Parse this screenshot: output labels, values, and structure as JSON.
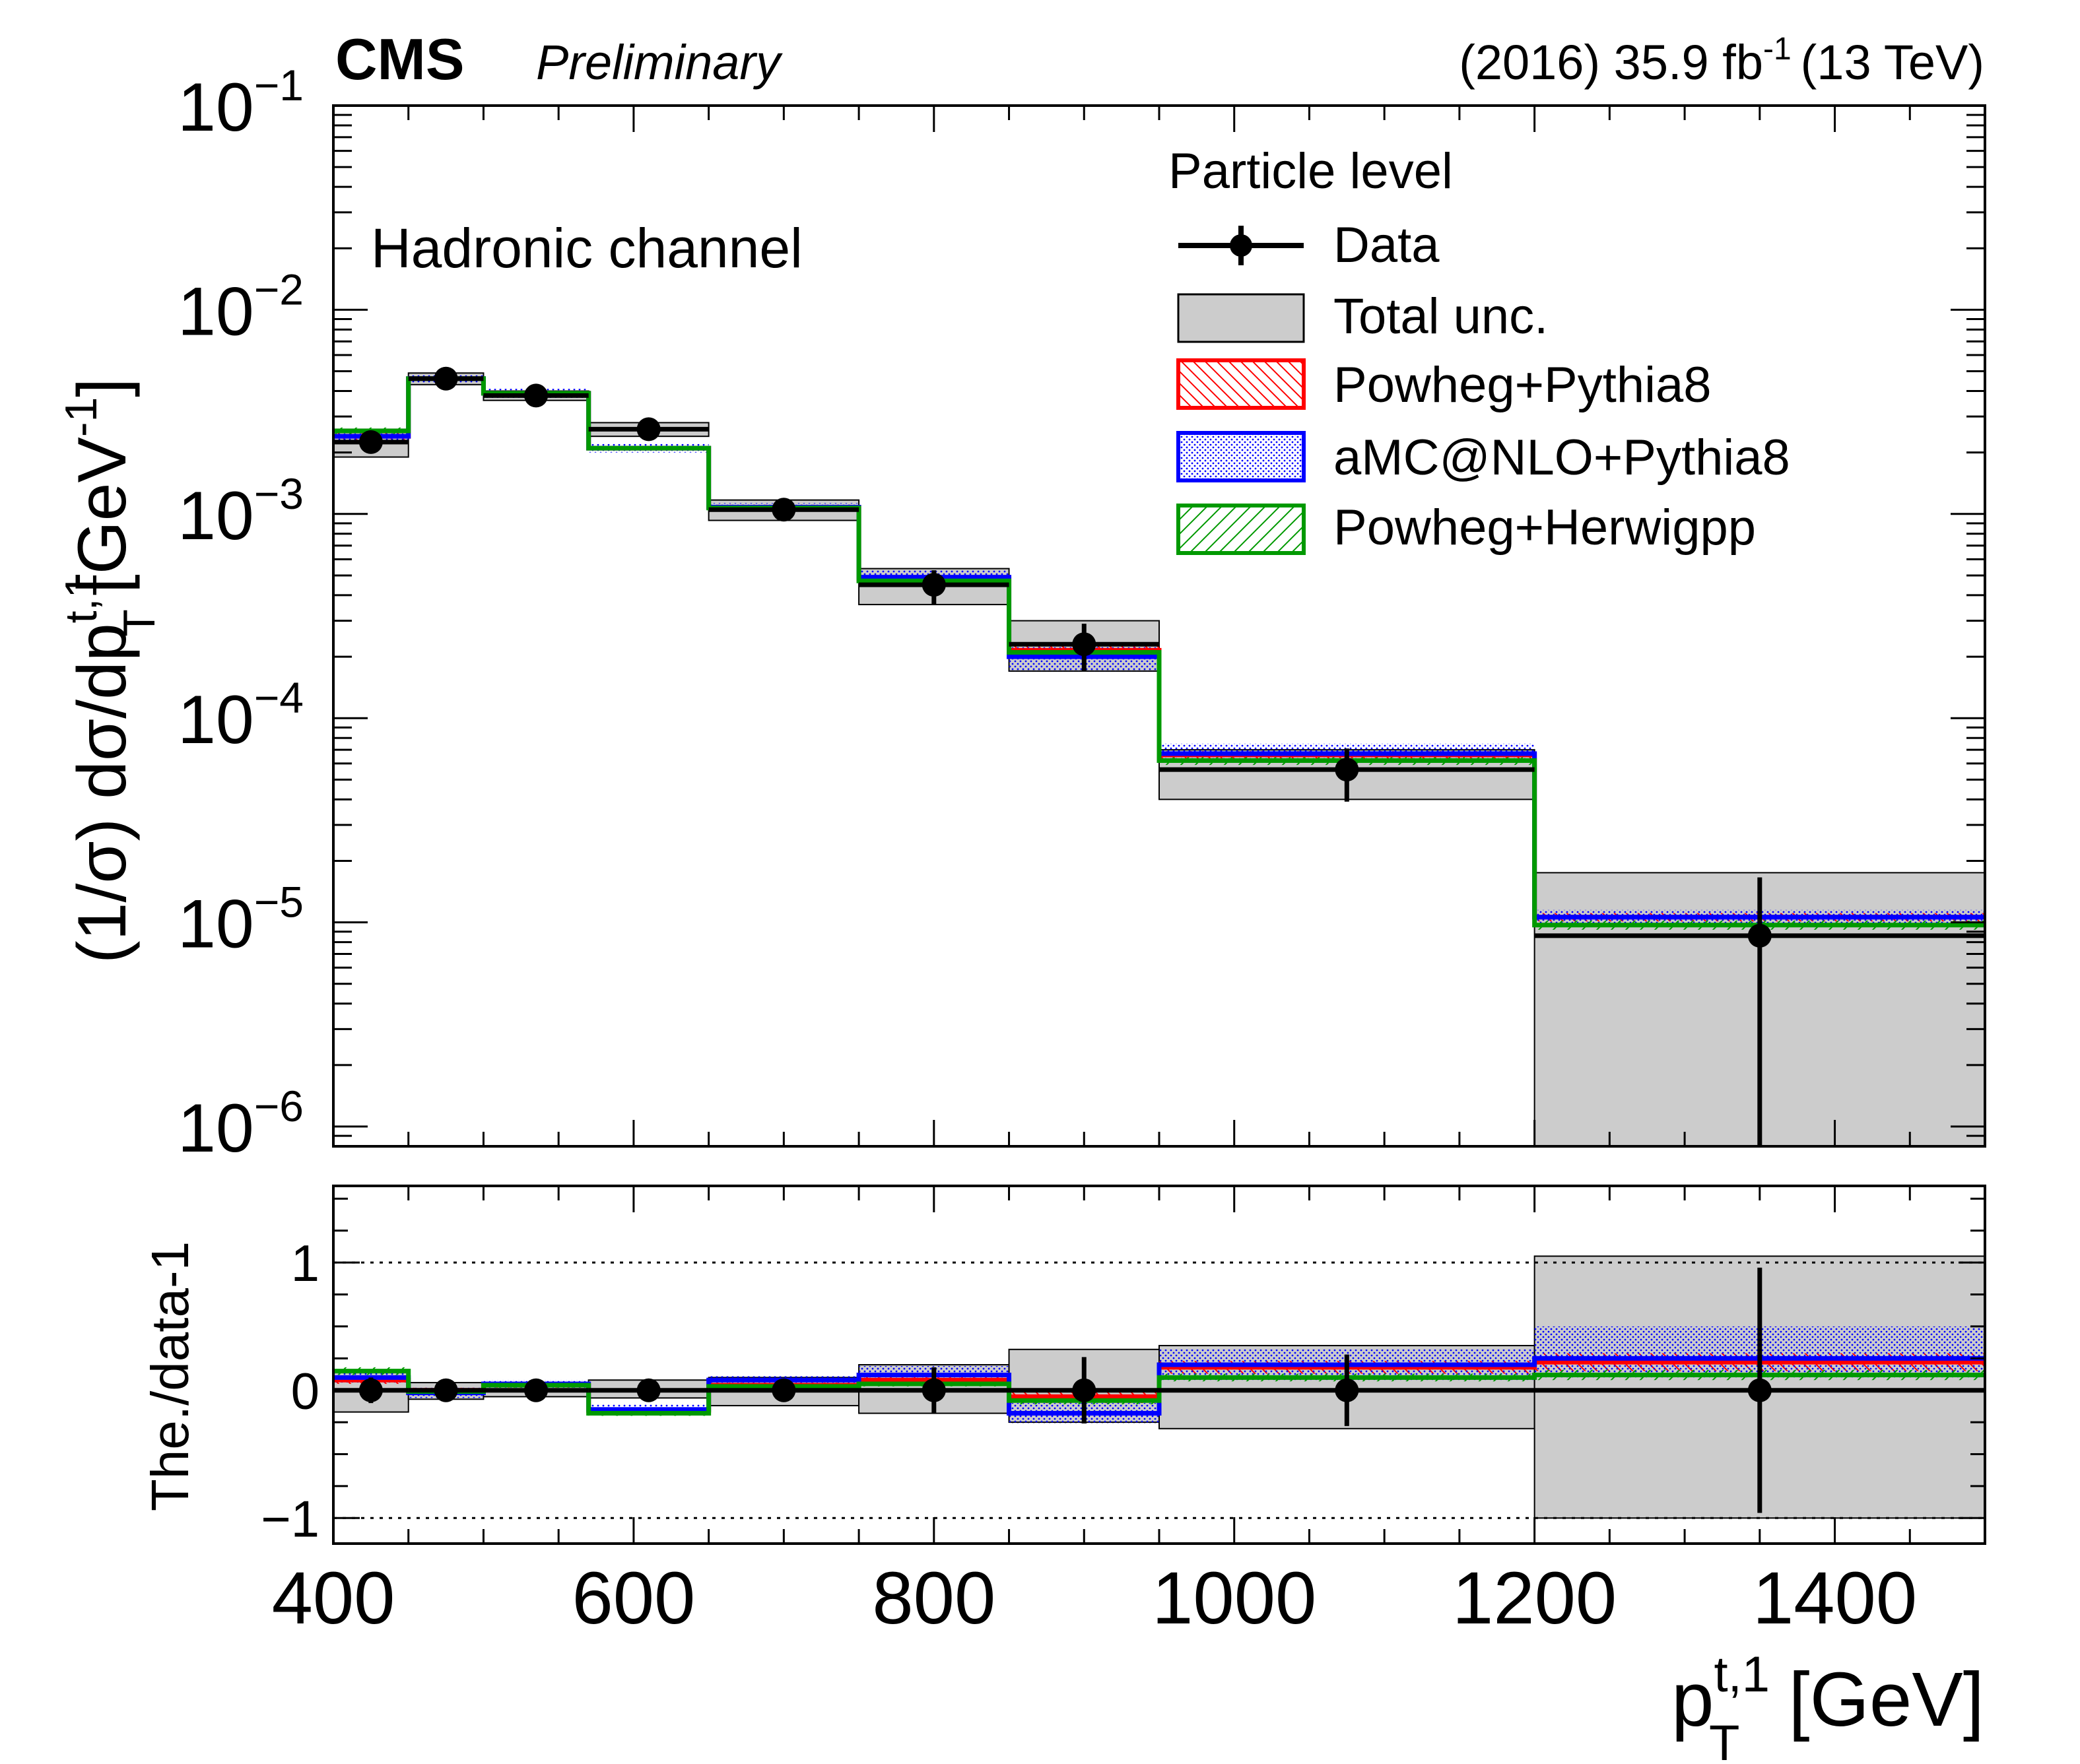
{
  "header": {
    "experiment": "CMS",
    "status": "Preliminary",
    "lumi_main": "(2016) 35.9 fb",
    "lumi_exp": "-1",
    "energy": "(13 TeV)"
  },
  "annotation": "Hadronic channel",
  "legend": {
    "title": "Particle level",
    "entries": [
      "Data",
      "Total unc.",
      "Powheg+Pythia8",
      "aMC@NLO+Pythia8",
      "Powheg+Herwigpp"
    ]
  },
  "axes": {
    "ylabel_top_prefix": "(1/σ) dσ/dp",
    "ylabel_top_sup": "t,1",
    "ylabel_top_sub": "T",
    "ylabel_top_units": "[GeV",
    "ylabel_top_units_exp": "-1",
    "ylabel_top_close": "]",
    "ylabel_bottom": "The./data-1",
    "xlabel_main": "p",
    "xlabel_sup": "t,1",
    "xlabel_sub": "T",
    "xlabel_units": "[GeV]"
  },
  "colors": {
    "data": "#000000",
    "total_unc": "#cccccc",
    "powheg_pythia8": "#ff0000",
    "amcatnlo_pythia8": "#0000ff",
    "powheg_herwigpp": "#009900"
  },
  "chart_data": [
    {
      "type": "histogram",
      "panel": "main",
      "yscale": "log",
      "xlim": [
        400,
        1500
      ],
      "ylim": [
        8e-07,
        0.1
      ],
      "yticks": [
        {
          "value": 0.1,
          "base": "10",
          "exp": "−1"
        },
        {
          "value": 0.01,
          "base": "10",
          "exp": "−2"
        },
        {
          "value": 0.001,
          "base": "10",
          "exp": "−3"
        },
        {
          "value": 0.0001,
          "base": "10",
          "exp": "−4"
        },
        {
          "value": 1e-05,
          "base": "10",
          "exp": "−5"
        },
        {
          "value": 1e-06,
          "base": "10",
          "exp": "−6"
        }
      ],
      "bin_edges": [
        400,
        450,
        500,
        570,
        650,
        750,
        850,
        950,
        1200,
        1500
      ],
      "data": {
        "x": [
          425,
          475,
          535,
          610,
          700,
          800,
          900,
          1075,
          1350
        ],
        "y": [
          0.00225,
          0.0046,
          0.0038,
          0.0026,
          0.00105,
          0.00045,
          0.00023,
          5.6e-05,
          8.6e-06
        ],
        "err_low": [
          0.0002,
          0.0003,
          0.00025,
          0.0002,
          8e-05,
          9e-05,
          6e-05,
          1.7e-05,
          8.1e-06
        ],
        "err_high": [
          0.0002,
          0.0003,
          0.00025,
          0.0002,
          8e-05,
          8e-05,
          6e-05,
          1.5e-05,
          8e-06
        ]
      },
      "total_unc": {
        "low": [
          0.0019,
          0.0043,
          0.0036,
          0.0024,
          0.00093,
          0.00036,
          0.00017,
          4e-05,
          8e-07
        ],
        "high": [
          0.0026,
          0.0049,
          0.004,
          0.0028,
          0.00117,
          0.00054,
          0.0003,
          7e-05,
          1.75e-05
        ]
      },
      "series": [
        {
          "name": "Powheg+Pythia8",
          "values": [
            0.0024,
            0.0046,
            0.0039,
            0.0021,
            0.00108,
            0.00048,
            0.000215,
            6.6e-05,
            1.06e-05
          ],
          "band_low": [
            0.0023,
            0.0045,
            0.0038,
            0.00205,
            0.00105,
            0.00046,
            0.0002,
            6.3e-05,
            1.01e-05
          ],
          "band_high": [
            0.0025,
            0.0047,
            0.004,
            0.00215,
            0.00111,
            0.0005,
            0.00023,
            6.9e-05,
            1.11e-05
          ]
        },
        {
          "name": "aMC@NLO+Pythia8",
          "values": [
            0.0024,
            0.0046,
            0.0039,
            0.0021,
            0.00108,
            0.00049,
            0.0002,
            6.7e-05,
            1.06e-05
          ],
          "band_low": [
            0.0023,
            0.0044,
            0.0037,
            0.002,
            0.00103,
            0.00045,
            0.00017,
            6.1e-05,
            9.8e-06
          ],
          "band_high": [
            0.0025,
            0.0048,
            0.0041,
            0.0022,
            0.00113,
            0.00053,
            0.00023,
            7.5e-05,
            1.15e-05
          ]
        },
        {
          "name": "Powheg+Herwigpp",
          "values": [
            0.00255,
            0.0046,
            0.0039,
            0.0021,
            0.00107,
            0.00047,
            0.00021,
            6.2e-05,
            9.7e-06
          ],
          "band_low": [
            0.00245,
            0.0045,
            0.0038,
            0.00205,
            0.00104,
            0.00045,
            0.0002,
            5.9e-05,
            9.2e-06
          ],
          "band_high": [
            0.00265,
            0.0047,
            0.004,
            0.00215,
            0.0011,
            0.00049,
            0.00022,
            6.5e-05,
            1.02e-05
          ]
        }
      ]
    },
    {
      "type": "histogram",
      "panel": "ratio",
      "xlim": [
        400,
        1500
      ],
      "ylim": [
        -1.2,
        1.6
      ],
      "yticks": [
        -1,
        0,
        1
      ],
      "ytick_labels": [
        "−1",
        "0",
        "1"
      ],
      "xticks": [
        400,
        600,
        800,
        1000,
        1200,
        1400
      ],
      "xtick_labels": [
        "400",
        "600",
        "800",
        "1000",
        "1200",
        "1400"
      ],
      "reference_lines": [
        -1,
        1
      ],
      "bin_edges": [
        400,
        450,
        500,
        570,
        650,
        750,
        850,
        950,
        1200,
        1500
      ],
      "data": {
        "x": [
          425,
          475,
          535,
          610,
          700,
          800,
          900,
          1075,
          1350
        ],
        "y": [
          0,
          0,
          0,
          0,
          0,
          0,
          0,
          0,
          0
        ],
        "err": [
          0.1,
          0.06,
          0.07,
          0.07,
          0.08,
          0.18,
          0.26,
          0.28,
          0.96
        ]
      },
      "total_unc": {
        "low": [
          -0.17,
          -0.07,
          -0.05,
          -0.06,
          -0.12,
          -0.18,
          -0.25,
          -0.3,
          -1.0
        ],
        "high": [
          0.15,
          0.06,
          0.06,
          0.08,
          0.1,
          0.2,
          0.32,
          0.35,
          1.05
        ]
      },
      "series": [
        {
          "name": "Powheg+Pythia8",
          "values": [
            0.08,
            0.0,
            0.04,
            -0.16,
            0.04,
            0.08,
            -0.05,
            0.18,
            0.22
          ],
          "band_low": [
            0.05,
            -0.02,
            0.02,
            -0.18,
            0.02,
            0.05,
            -0.1,
            0.13,
            0.15
          ],
          "band_high": [
            0.11,
            0.02,
            0.06,
            -0.14,
            0.06,
            0.11,
            0.0,
            0.23,
            0.29
          ]
        },
        {
          "name": "aMC@NLO+Pythia8",
          "values": [
            0.1,
            -0.02,
            0.05,
            -0.15,
            0.08,
            0.12,
            -0.18,
            0.2,
            0.25
          ],
          "band_low": [
            0.06,
            -0.06,
            0.02,
            -0.19,
            0.05,
            0.05,
            -0.26,
            0.08,
            0.1
          ],
          "band_high": [
            0.14,
            0.02,
            0.08,
            -0.11,
            0.11,
            0.19,
            -0.1,
            0.32,
            0.5
          ]
        },
        {
          "name": "Powheg+Herwigpp",
          "values": [
            0.15,
            -0.01,
            0.04,
            -0.18,
            0.03,
            0.05,
            -0.08,
            0.1,
            0.12
          ],
          "band_low": [
            0.12,
            -0.03,
            0.02,
            -0.2,
            0.01,
            0.03,
            -0.11,
            0.07,
            0.08
          ],
          "band_high": [
            0.18,
            0.01,
            0.06,
            -0.16,
            0.05,
            0.07,
            -0.05,
            0.13,
            0.16
          ]
        }
      ]
    }
  ]
}
